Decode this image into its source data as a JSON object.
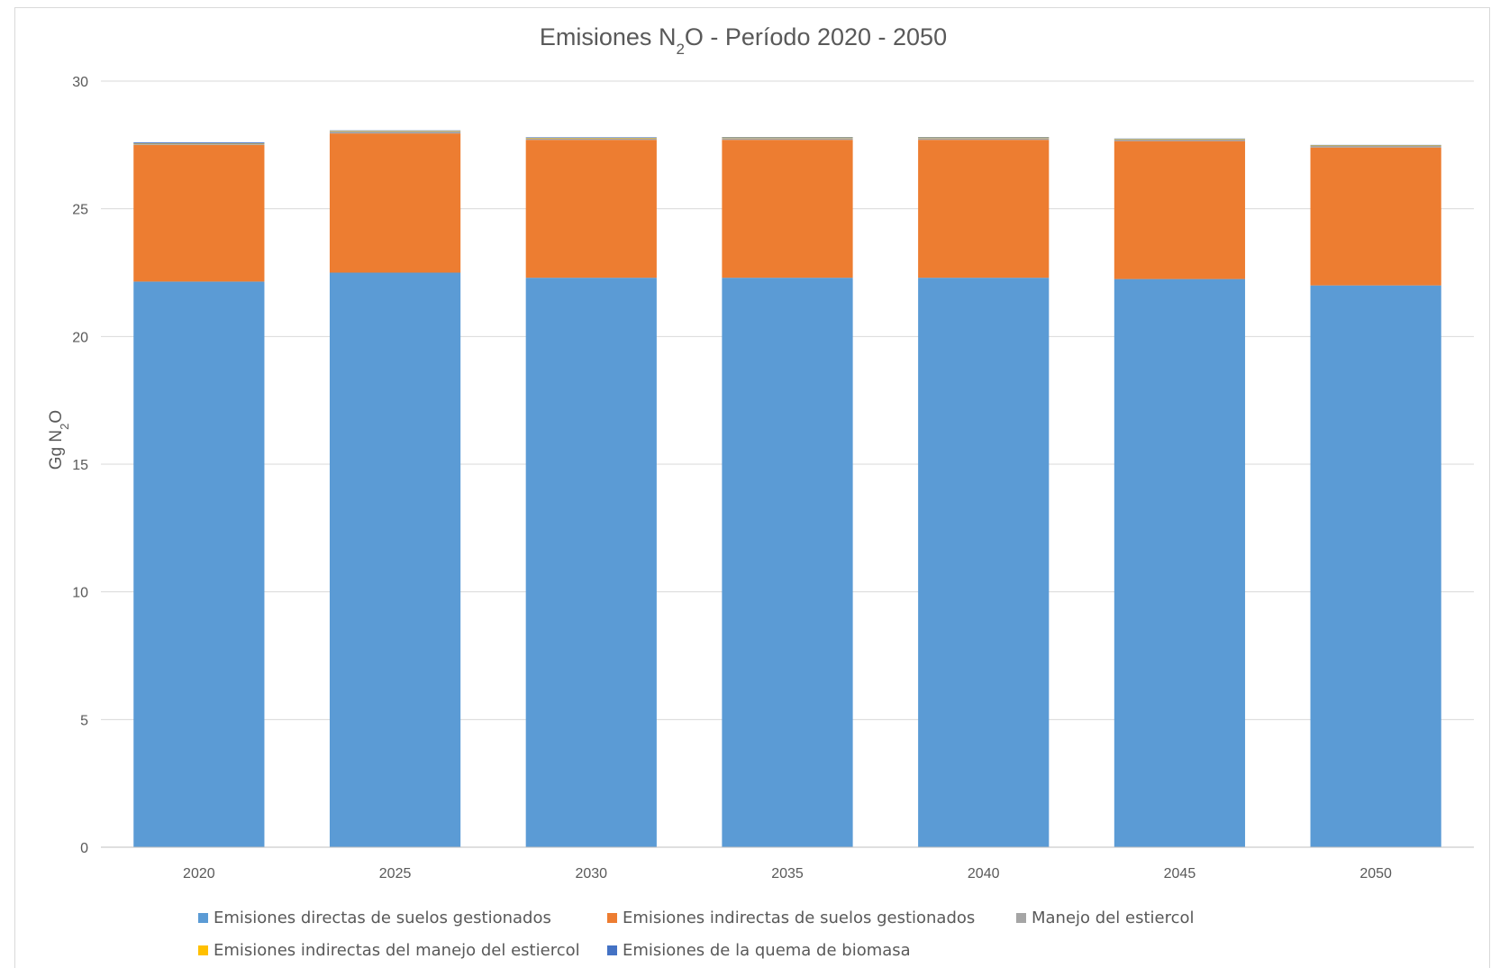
{
  "chart_data": {
    "type": "bar",
    "stacked": true,
    "title": "Emisiones N₂O - Período 2020 - 2050",
    "ylabel": "Gg N₂O",
    "xlabel": "",
    "ylim": [
      0,
      30
    ],
    "yticks": [
      0,
      5,
      10,
      15,
      20,
      25,
      30
    ],
    "grid": true,
    "legend_position": "bottom",
    "categories": [
      "2020",
      "2025",
      "2030",
      "2035",
      "2040",
      "2045",
      "2050"
    ],
    "series": [
      {
        "name": "Emisiones directas de suelos gestionados",
        "color": "#5B9BD5",
        "values": [
          22.15,
          22.5,
          22.3,
          22.3,
          22.3,
          22.25,
          22.0
        ]
      },
      {
        "name": "Emisiones indirectas de suelos gestionados",
        "color": "#ED7D31",
        "values": [
          5.35,
          5.45,
          5.4,
          5.4,
          5.4,
          5.4,
          5.4
        ]
      },
      {
        "name": "Manejo del estiercol",
        "color": "#A5A5A5",
        "values": [
          0.05,
          0.08,
          0.06,
          0.07,
          0.07,
          0.06,
          0.06
        ]
      },
      {
        "name": "Emisiones indirectas del manejo del estiercol",
        "color": "#FFC000",
        "values": [
          0.01,
          0.02,
          0.02,
          0.02,
          0.02,
          0.02,
          0.02
        ]
      },
      {
        "name": "Emisiones de la quema de biomasa",
        "color": "#4472C4",
        "values": [
          0.04,
          0.02,
          0.02,
          0.02,
          0.02,
          0.02,
          0.02
        ]
      }
    ]
  }
}
